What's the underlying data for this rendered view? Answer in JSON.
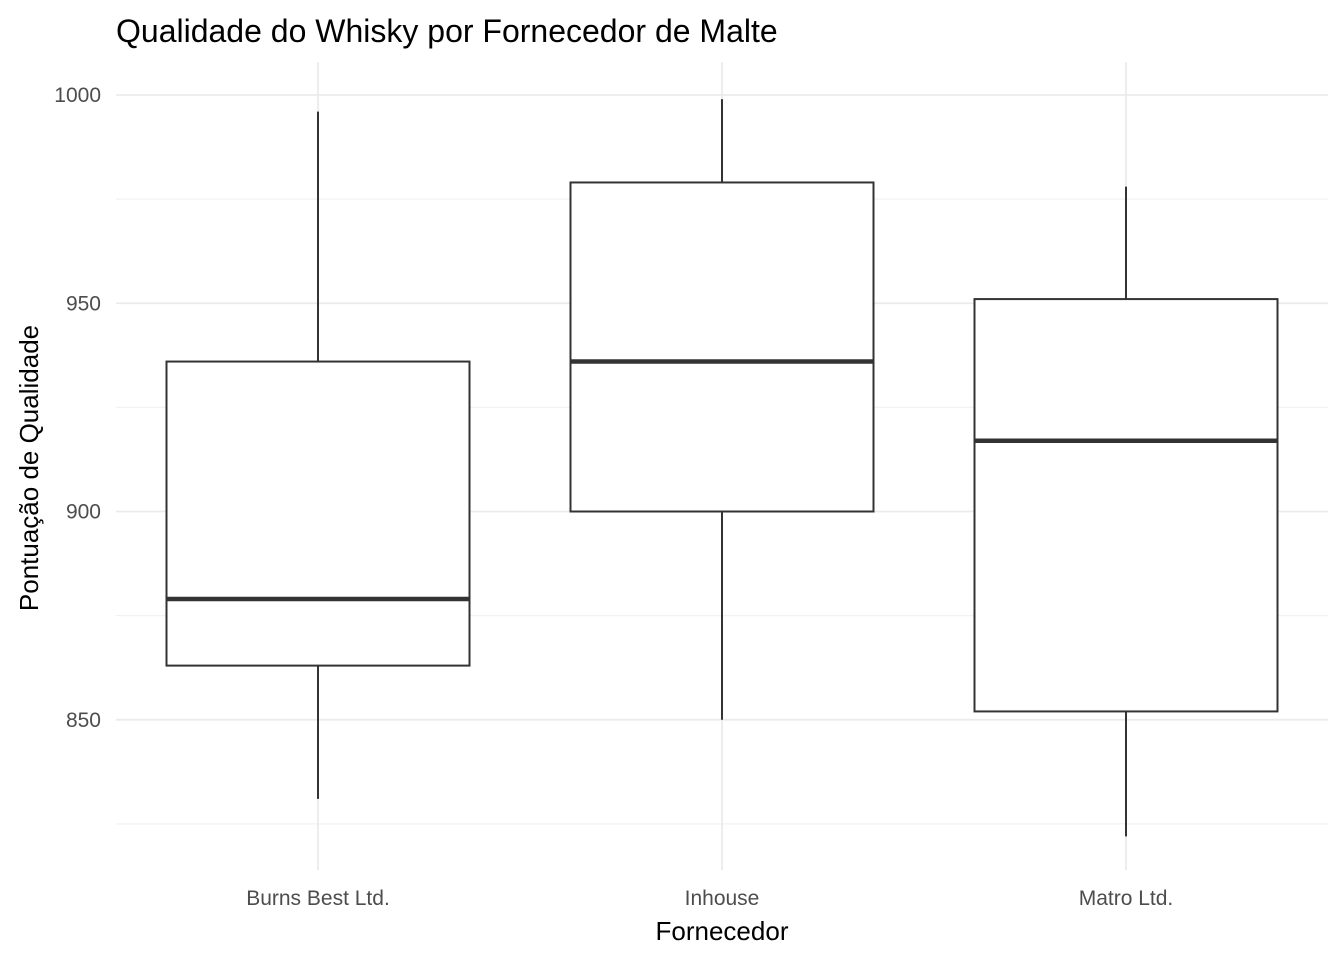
{
  "chart_data": {
    "type": "boxplot",
    "title": "Qualidade do Whisky por Fornecedor de Malte",
    "xlabel": "Fornecedor",
    "ylabel": "Pontuação de Qualidade",
    "categories": [
      "Burns Best Ltd.",
      "Inhouse",
      "Matro Ltd."
    ],
    "boxes": [
      {
        "category": "Burns Best Ltd.",
        "min": 831,
        "q1": 863,
        "median": 879,
        "q3": 936,
        "max": 996
      },
      {
        "category": "Inhouse",
        "min": 850,
        "q1": 900,
        "median": 936,
        "q3": 979,
        "max": 999
      },
      {
        "category": "Matro Ltd.",
        "min": 822,
        "q1": 852,
        "median": 917,
        "q3": 951,
        "max": 978
      }
    ],
    "y_ticks": [
      850,
      900,
      950,
      1000
    ],
    "y_tick_labels": [
      "850",
      "900",
      "950",
      "1000"
    ],
    "ylim": [
      811,
      1008
    ],
    "grid": true,
    "legend": "none",
    "colors": {
      "box_stroke": "#333333",
      "box_fill": "#ffffff",
      "grid": "#ebebeb",
      "tick_text": "#4d4d4d"
    }
  }
}
